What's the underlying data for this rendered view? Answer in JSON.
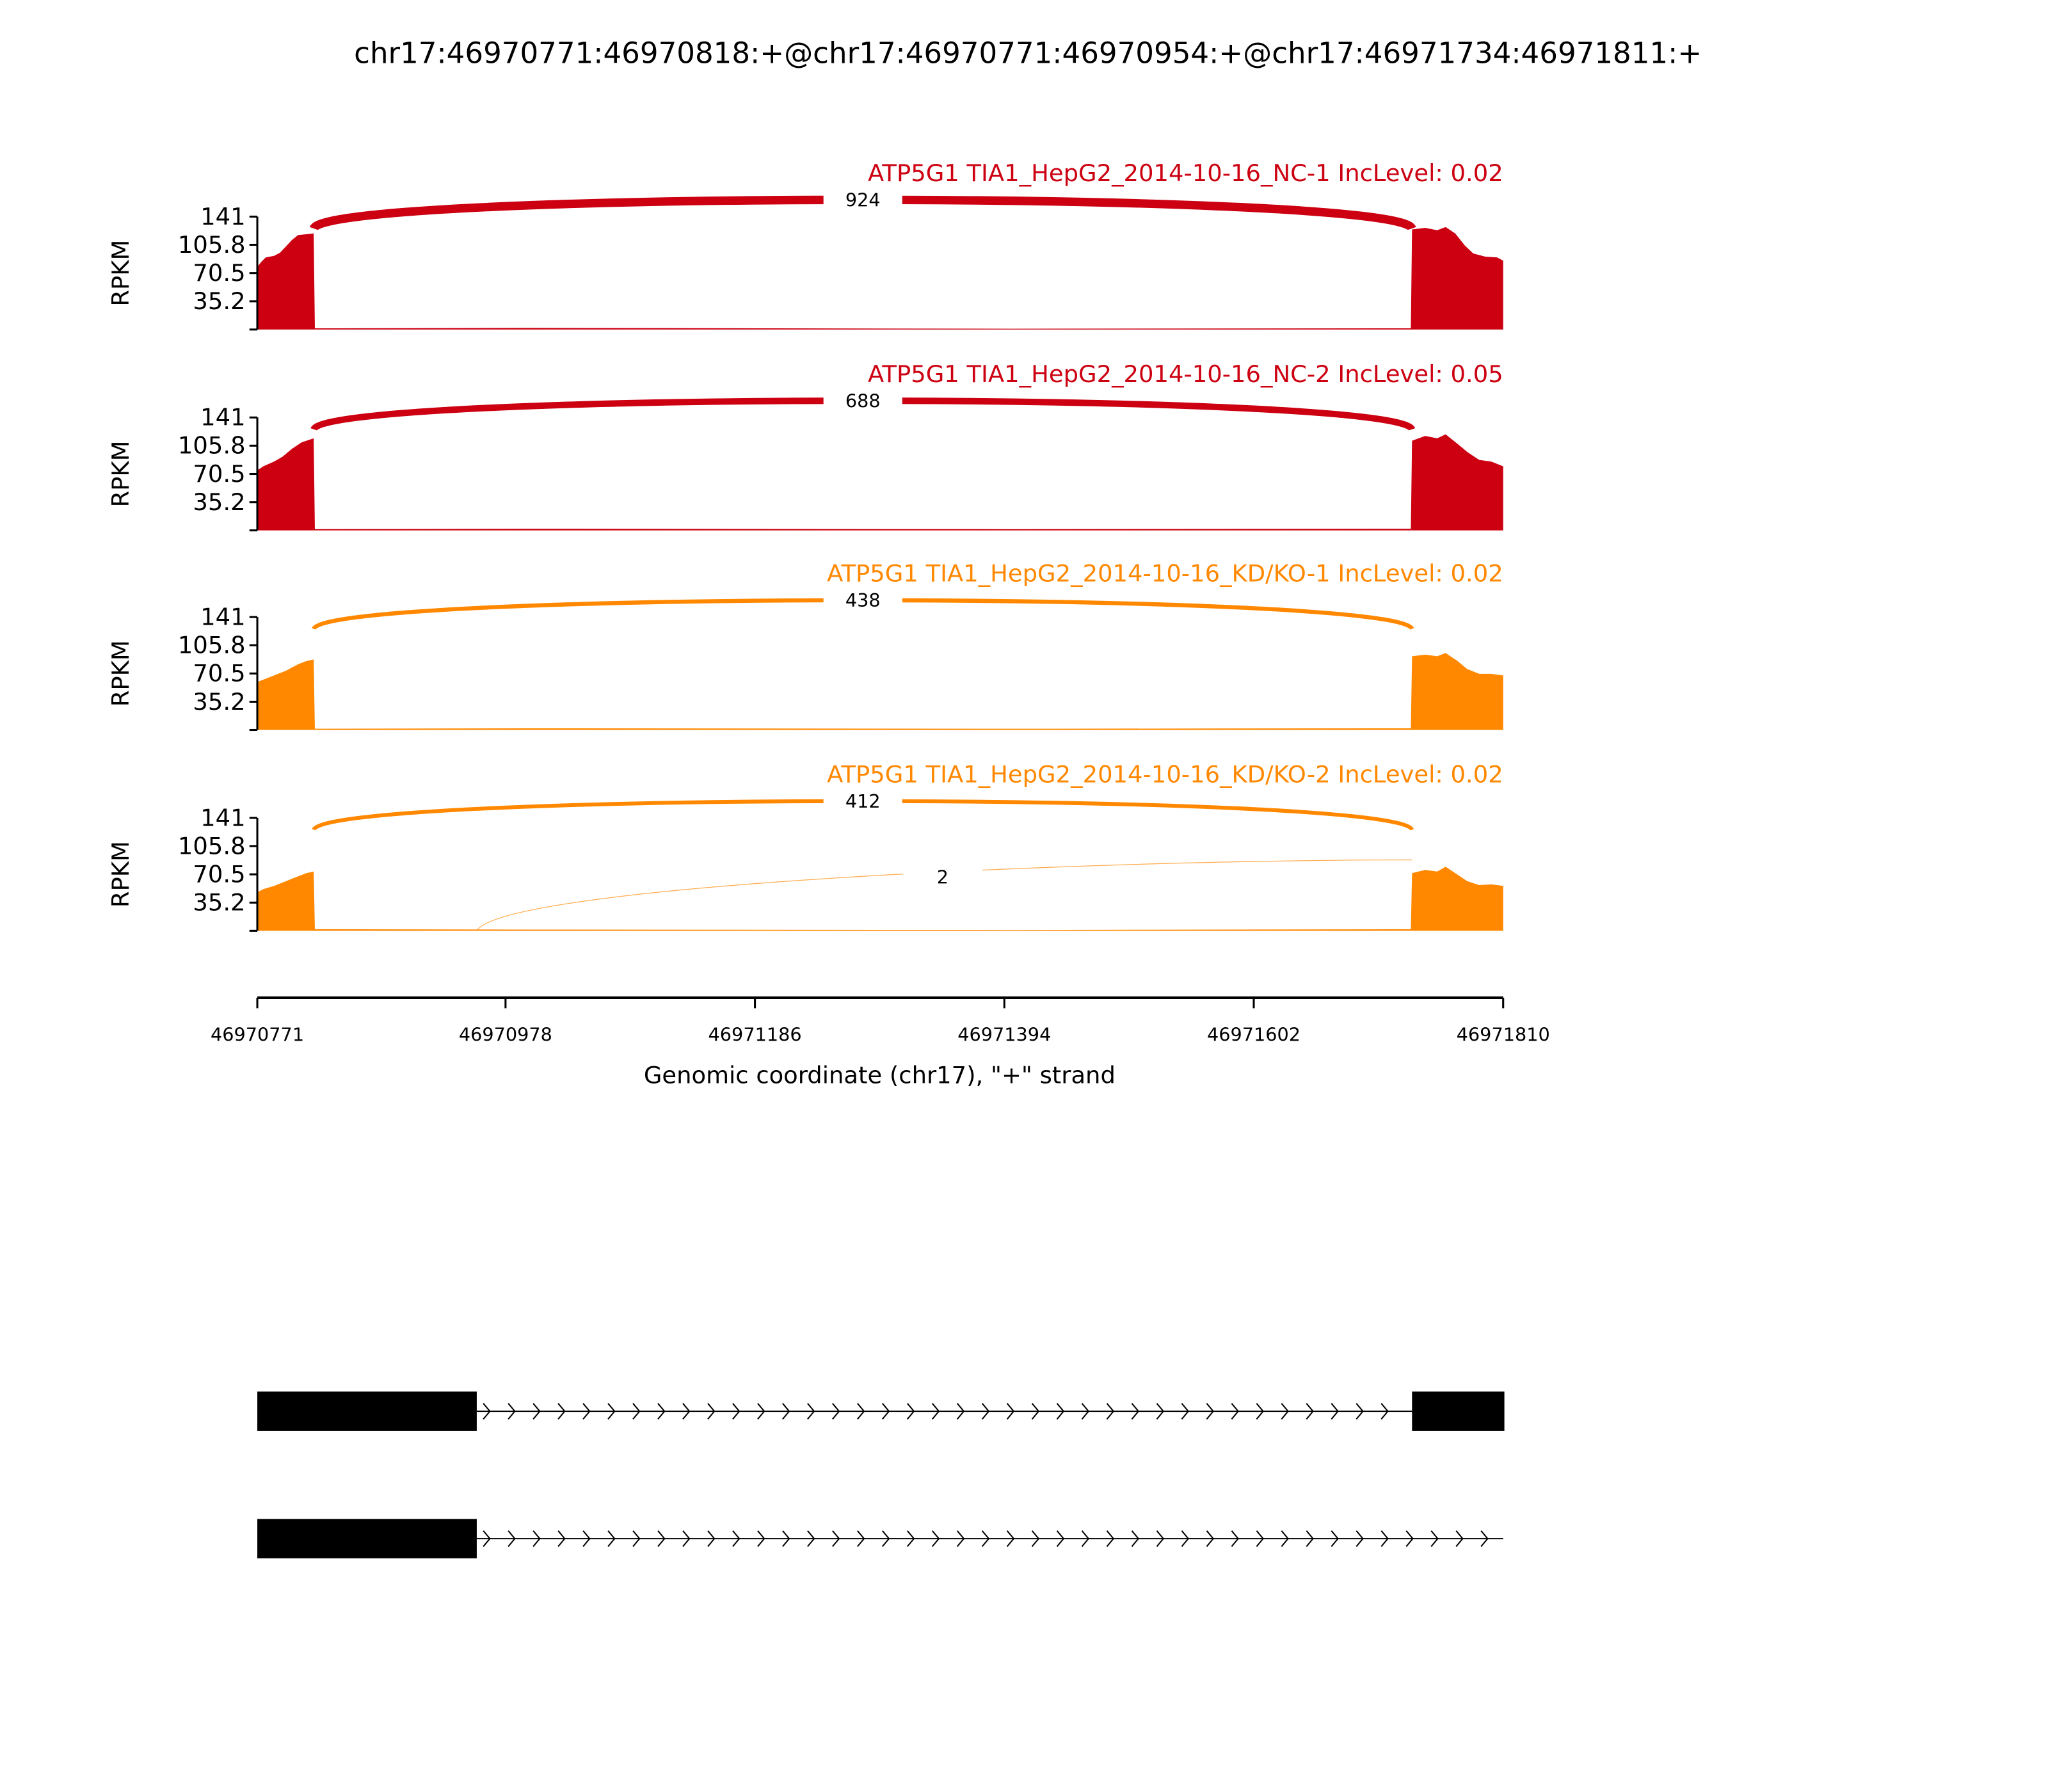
{
  "chart_data": {
    "type": "area",
    "title": "chr17:46970771:46970818:+@chr17:46970771:46970954:+@chr17:46971734:46971811:+",
    "xlabel": "Genomic coordinate (chr17), \"+\" strand",
    "ylabel": "RPKM",
    "xlim": [
      46970771,
      46971810
    ],
    "xticks": [
      "46970771",
      "46970978",
      "46971186",
      "46971394",
      "46971602",
      "46971810"
    ],
    "ylim": [
      0,
      141
    ],
    "yticks": [
      "35.2",
      "70.5",
      "105.8",
      "141"
    ],
    "grid": false,
    "panels": [
      {
        "label": "ATP5G1 TIA1_HepG2_2014-10-16_NC-1 IncLevel: 0.02",
        "color": "#cc0011",
        "coverage": [
          [
            46970771,
            78
          ],
          [
            46970774,
            84
          ],
          [
            46970778,
            90
          ],
          [
            46970785,
            92
          ],
          [
            46970790,
            96
          ],
          [
            46970795,
            104
          ],
          [
            46970800,
            112
          ],
          [
            46970805,
            118
          ],
          [
            46970812,
            119
          ],
          [
            46970818,
            120
          ],
          [
            46970819,
            1.5
          ],
          [
            46971000,
            2
          ],
          [
            46971400,
            1
          ],
          [
            46971733,
            1.5
          ],
          [
            46971734,
            125
          ],
          [
            46971745,
            127
          ],
          [
            46971755,
            124
          ],
          [
            46971762,
            128
          ],
          [
            46971770,
            120
          ],
          [
            46971778,
            105
          ],
          [
            46971785,
            95
          ],
          [
            46971795,
            91
          ],
          [
            46971805,
            90
          ],
          [
            46971810,
            86
          ]
        ],
        "junctions": [
          {
            "start": 46970818,
            "end": 46971734,
            "count": "924"
          }
        ]
      },
      {
        "label": "ATP5G1 TIA1_HepG2_2014-10-16_NC-2 IncLevel: 0.05",
        "color": "#cc0011",
        "coverage": [
          [
            46970771,
            75
          ],
          [
            46970776,
            80
          ],
          [
            46970785,
            86
          ],
          [
            46970792,
            92
          ],
          [
            46970800,
            102
          ],
          [
            46970808,
            110
          ],
          [
            46970818,
            115
          ],
          [
            46970819,
            1.5
          ],
          [
            46971000,
            2
          ],
          [
            46971400,
            1.5
          ],
          [
            46971733,
            2
          ],
          [
            46971734,
            112
          ],
          [
            46971745,
            118
          ],
          [
            46971755,
            115
          ],
          [
            46971762,
            120
          ],
          [
            46971772,
            108
          ],
          [
            46971780,
            98
          ],
          [
            46971790,
            88
          ],
          [
            46971800,
            86
          ],
          [
            46971810,
            80
          ]
        ],
        "junctions": [
          {
            "start": 46970818,
            "end": 46971734,
            "count": "688"
          }
        ]
      },
      {
        "label": "ATP5G1 TIA1_HepG2_2014-10-16_KD/KO-1 IncLevel: 0.02",
        "color": "#ff8800",
        "coverage": [
          [
            46970771,
            60
          ],
          [
            46970778,
            64
          ],
          [
            46970785,
            68
          ],
          [
            46970795,
            74
          ],
          [
            46970805,
            82
          ],
          [
            46970812,
            86
          ],
          [
            46970818,
            88
          ],
          [
            46970819,
            1.5
          ],
          [
            46971000,
            2
          ],
          [
            46971400,
            1.5
          ],
          [
            46971733,
            2
          ],
          [
            46971734,
            92
          ],
          [
            46971745,
            94
          ],
          [
            46971755,
            92
          ],
          [
            46971762,
            96
          ],
          [
            46971772,
            86
          ],
          [
            46971780,
            76
          ],
          [
            46971790,
            70
          ],
          [
            46971800,
            70
          ],
          [
            46971810,
            68
          ]
        ],
        "junctions": [
          {
            "start": 46970818,
            "end": 46971734,
            "count": "438"
          }
        ]
      },
      {
        "label": "ATP5G1 TIA1_HepG2_2014-10-16_KD/KO-2 IncLevel: 0.02",
        "color": "#ff8800",
        "coverage": [
          [
            46970771,
            48
          ],
          [
            46970776,
            52
          ],
          [
            46970785,
            56
          ],
          [
            46970795,
            62
          ],
          [
            46970805,
            68
          ],
          [
            46970812,
            72
          ],
          [
            46970818,
            74
          ],
          [
            46970819,
            2
          ],
          [
            46971000,
            1.5
          ],
          [
            46971400,
            1
          ],
          [
            46971733,
            2
          ],
          [
            46971734,
            72
          ],
          [
            46971745,
            76
          ],
          [
            46971755,
            74
          ],
          [
            46971762,
            80
          ],
          [
            46971772,
            70
          ],
          [
            46971780,
            62
          ],
          [
            46971790,
            57
          ],
          [
            46971800,
            58
          ],
          [
            46971810,
            56
          ]
        ],
        "junctions": [
          {
            "start": 46970818,
            "end": 46971734,
            "count": "412"
          },
          {
            "start": 46970954,
            "end": 46971734,
            "count": "2"
          }
        ]
      }
    ],
    "gene_models": [
      {
        "exons": [
          [
            46970771,
            46970954
          ],
          [
            46971734,
            46971811
          ]
        ],
        "strand": "+"
      },
      {
        "exons": [
          [
            46970771,
            46970954
          ]
        ],
        "intron_end": 46971811,
        "strand": "+"
      }
    ]
  }
}
